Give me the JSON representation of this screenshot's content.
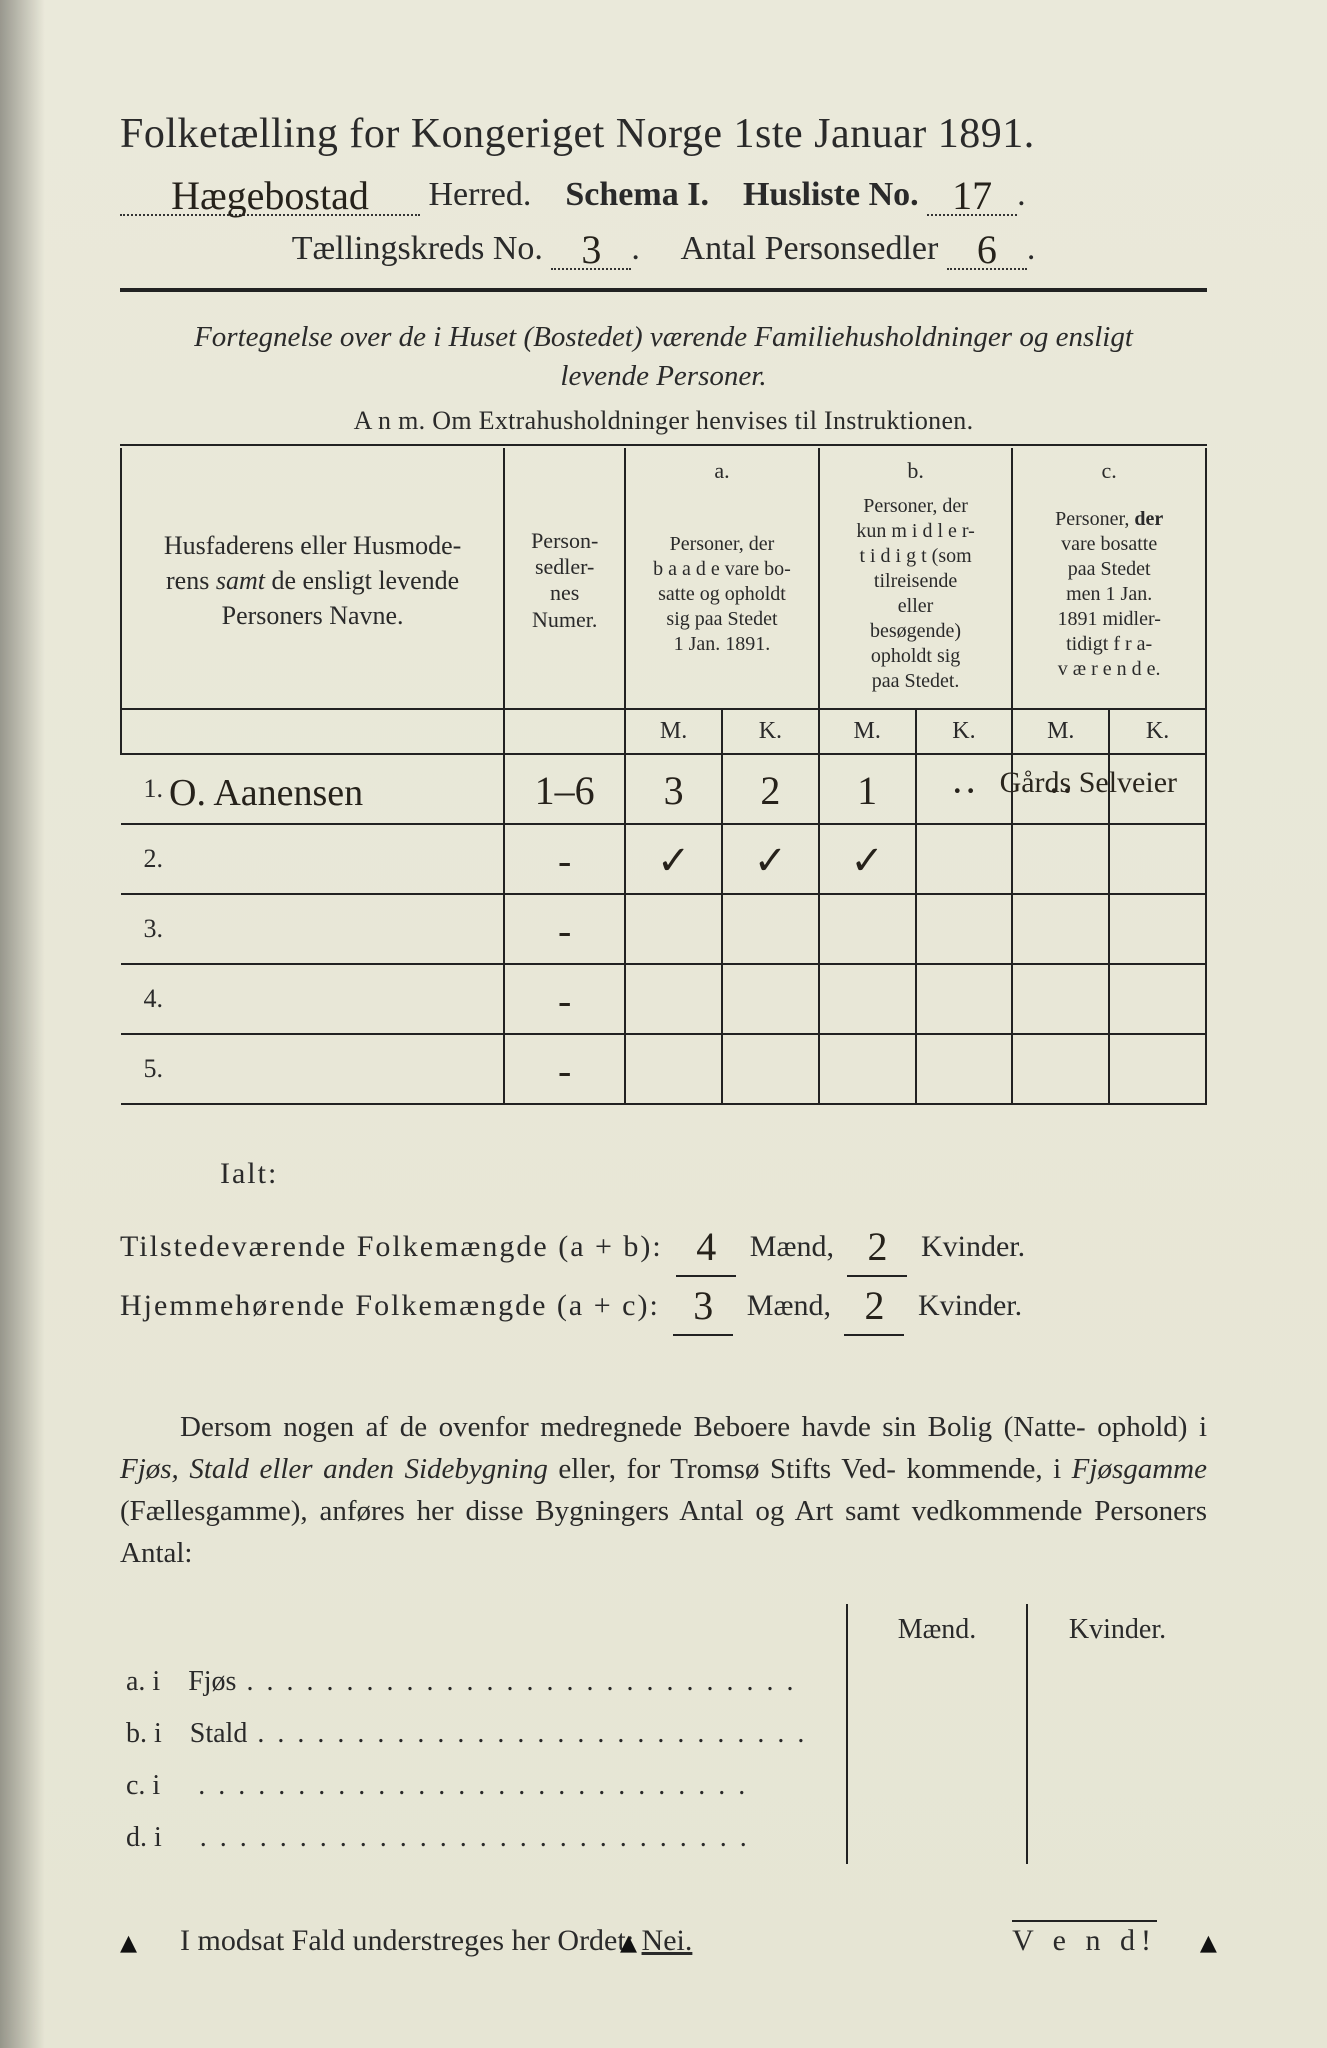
{
  "header": {
    "title": "Folketælling for Kongeriget Norge 1ste Januar 1891.",
    "herred_hand": "Hægebostad",
    "herred_label": "Herred.",
    "schema": "Schema I.",
    "husliste_label": "Husliste No.",
    "husliste_no": "17",
    "kreds_label": "Tællingskreds No.",
    "kreds_no": "3",
    "antal_label": "Antal Personsedler",
    "antal_no": "6"
  },
  "intro": {
    "line1": "Fortegnelse over de i Huset (Bostedet) værende Familiehusholdninger og ensligt",
    "line2": "levende Personer.",
    "anm": "A n m.  Om Extrahusholdninger henvises til Instruktionen."
  },
  "table": {
    "col_name": "Husfaderens eller Husmoderens samt de ensligt levende Personers Navne.",
    "col_num": "Person-sedler-nes Numer.",
    "col_a_top": "a.",
    "col_a": "Personer, der baade vare bosatte og opholdt sig paa Stedet 1 Jan. 1891.",
    "col_b_top": "b.",
    "col_b": "Personer, der kun midler-tidigt (som tilreisende eller besøgende) opholdt sig paa Stedet.",
    "col_c_top": "c.",
    "col_c": "Personer, der vare bosatte paa Stedet men 1 Jan. 1891 midler-tidigt fra-værende.",
    "mk_m": "M.",
    "mk_k": "K.",
    "rows": [
      {
        "idx": "1.",
        "name": "O. Aanensen",
        "num": "1–6",
        "aM": "3",
        "aK": "2",
        "bM": "1",
        "bK": "··",
        "cM": "··",
        "cK": "",
        "note": "Gårds Selveier"
      },
      {
        "idx": "2.",
        "name": "",
        "num": "-",
        "aM": "✓",
        "aK": "✓",
        "bM": "✓",
        "bK": "",
        "cM": "",
        "cK": "",
        "note": ""
      },
      {
        "idx": "3.",
        "name": "",
        "num": "-",
        "aM": "",
        "aK": "",
        "bM": "",
        "bK": "",
        "cM": "",
        "cK": "",
        "note": ""
      },
      {
        "idx": "4.",
        "name": "",
        "num": "-",
        "aM": "",
        "aK": "",
        "bM": "",
        "bK": "",
        "cM": "",
        "cK": "",
        "note": ""
      },
      {
        "idx": "5.",
        "name": "",
        "num": "-",
        "aM": "",
        "aK": "",
        "bM": "",
        "bK": "",
        "cM": "",
        "cK": "",
        "note": ""
      }
    ]
  },
  "totals": {
    "ialt": "Ialt:",
    "l1_label": "Tilstedeværende Folkemængde (a + b):",
    "l1_m": "4",
    "l1_mlabel": "Mænd,",
    "l1_k": "2",
    "l1_klabel": "Kvinder.",
    "l2_label": "Hjemmehørende Folkemængde (a + c):",
    "l2_m": "3",
    "l2_k": "2"
  },
  "para": "Dersom nogen af de ovenfor medregnede Beboere havde sin Bolig (Natteophold) i Fjøs, Stald eller anden Sidebygning eller, for Tromsø Stifts Vedkommende, i Fjøsgamme (Fællesgamme), anføres her disse Bygningers Antal og Art samt vedkommende Personers Antal:",
  "blg": {
    "hdr_m": "Mænd.",
    "hdr_k": "Kvinder.",
    "rows": [
      {
        "key": "a.  i",
        "label": "Fjøs"
      },
      {
        "key": "b.  i",
        "label": "Stald"
      },
      {
        "key": "c.  i",
        "label": ""
      },
      {
        "key": "d.  i",
        "label": ""
      }
    ]
  },
  "nei": {
    "text": "I modsat Fald understreges her Ordet:",
    "word": "Nei."
  },
  "vend": "V e n d!",
  "colors": {
    "paper": "#e8e7d8",
    "ink": "#2a2a2a",
    "hand": "#26221b"
  }
}
